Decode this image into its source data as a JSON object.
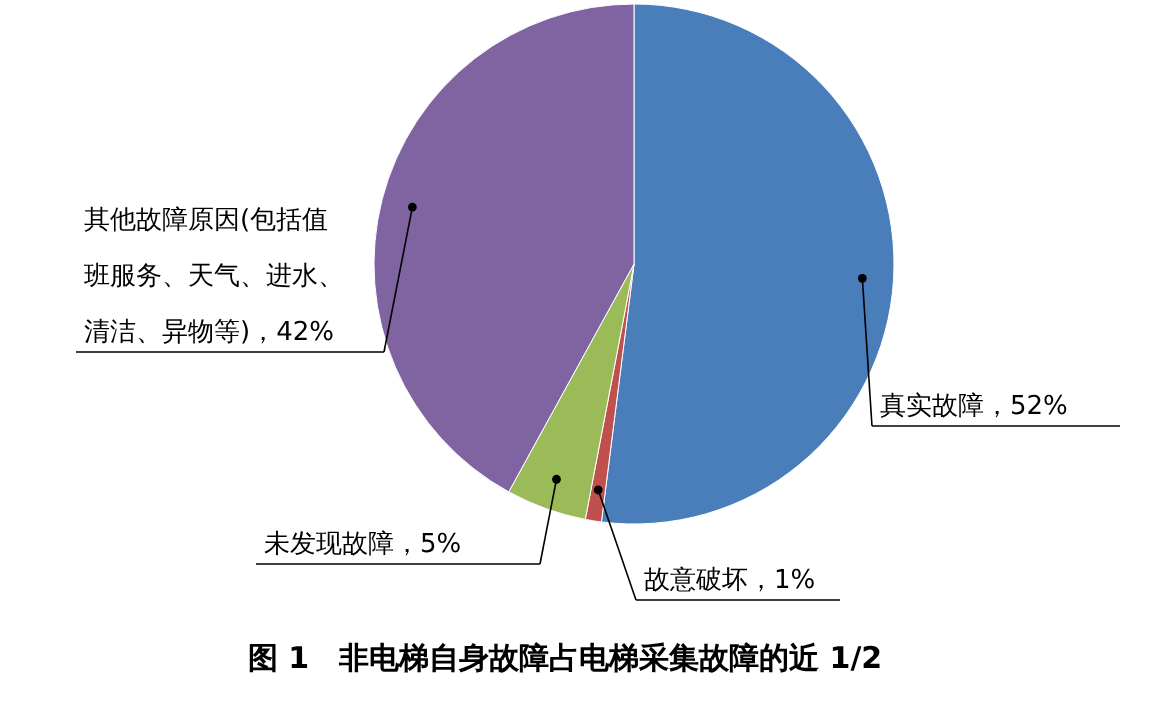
{
  "chart_data": {
    "type": "pie",
    "title": "图 1　非电梯自身故障占电梯采集故障的近 1/2",
    "categories": [
      "真实故障",
      "故意破坏",
      "未发现故障",
      "其他故障原因(包括值班服务、天气、进水、清洁、异物等)"
    ],
    "values": [
      52,
      1,
      5,
      42
    ],
    "value_labels": [
      "52%",
      "1%",
      "5%",
      "42%"
    ],
    "colors": [
      "#4a7ebb",
      "#c0504d",
      "#9bbb59",
      "#8064a2"
    ]
  }
}
